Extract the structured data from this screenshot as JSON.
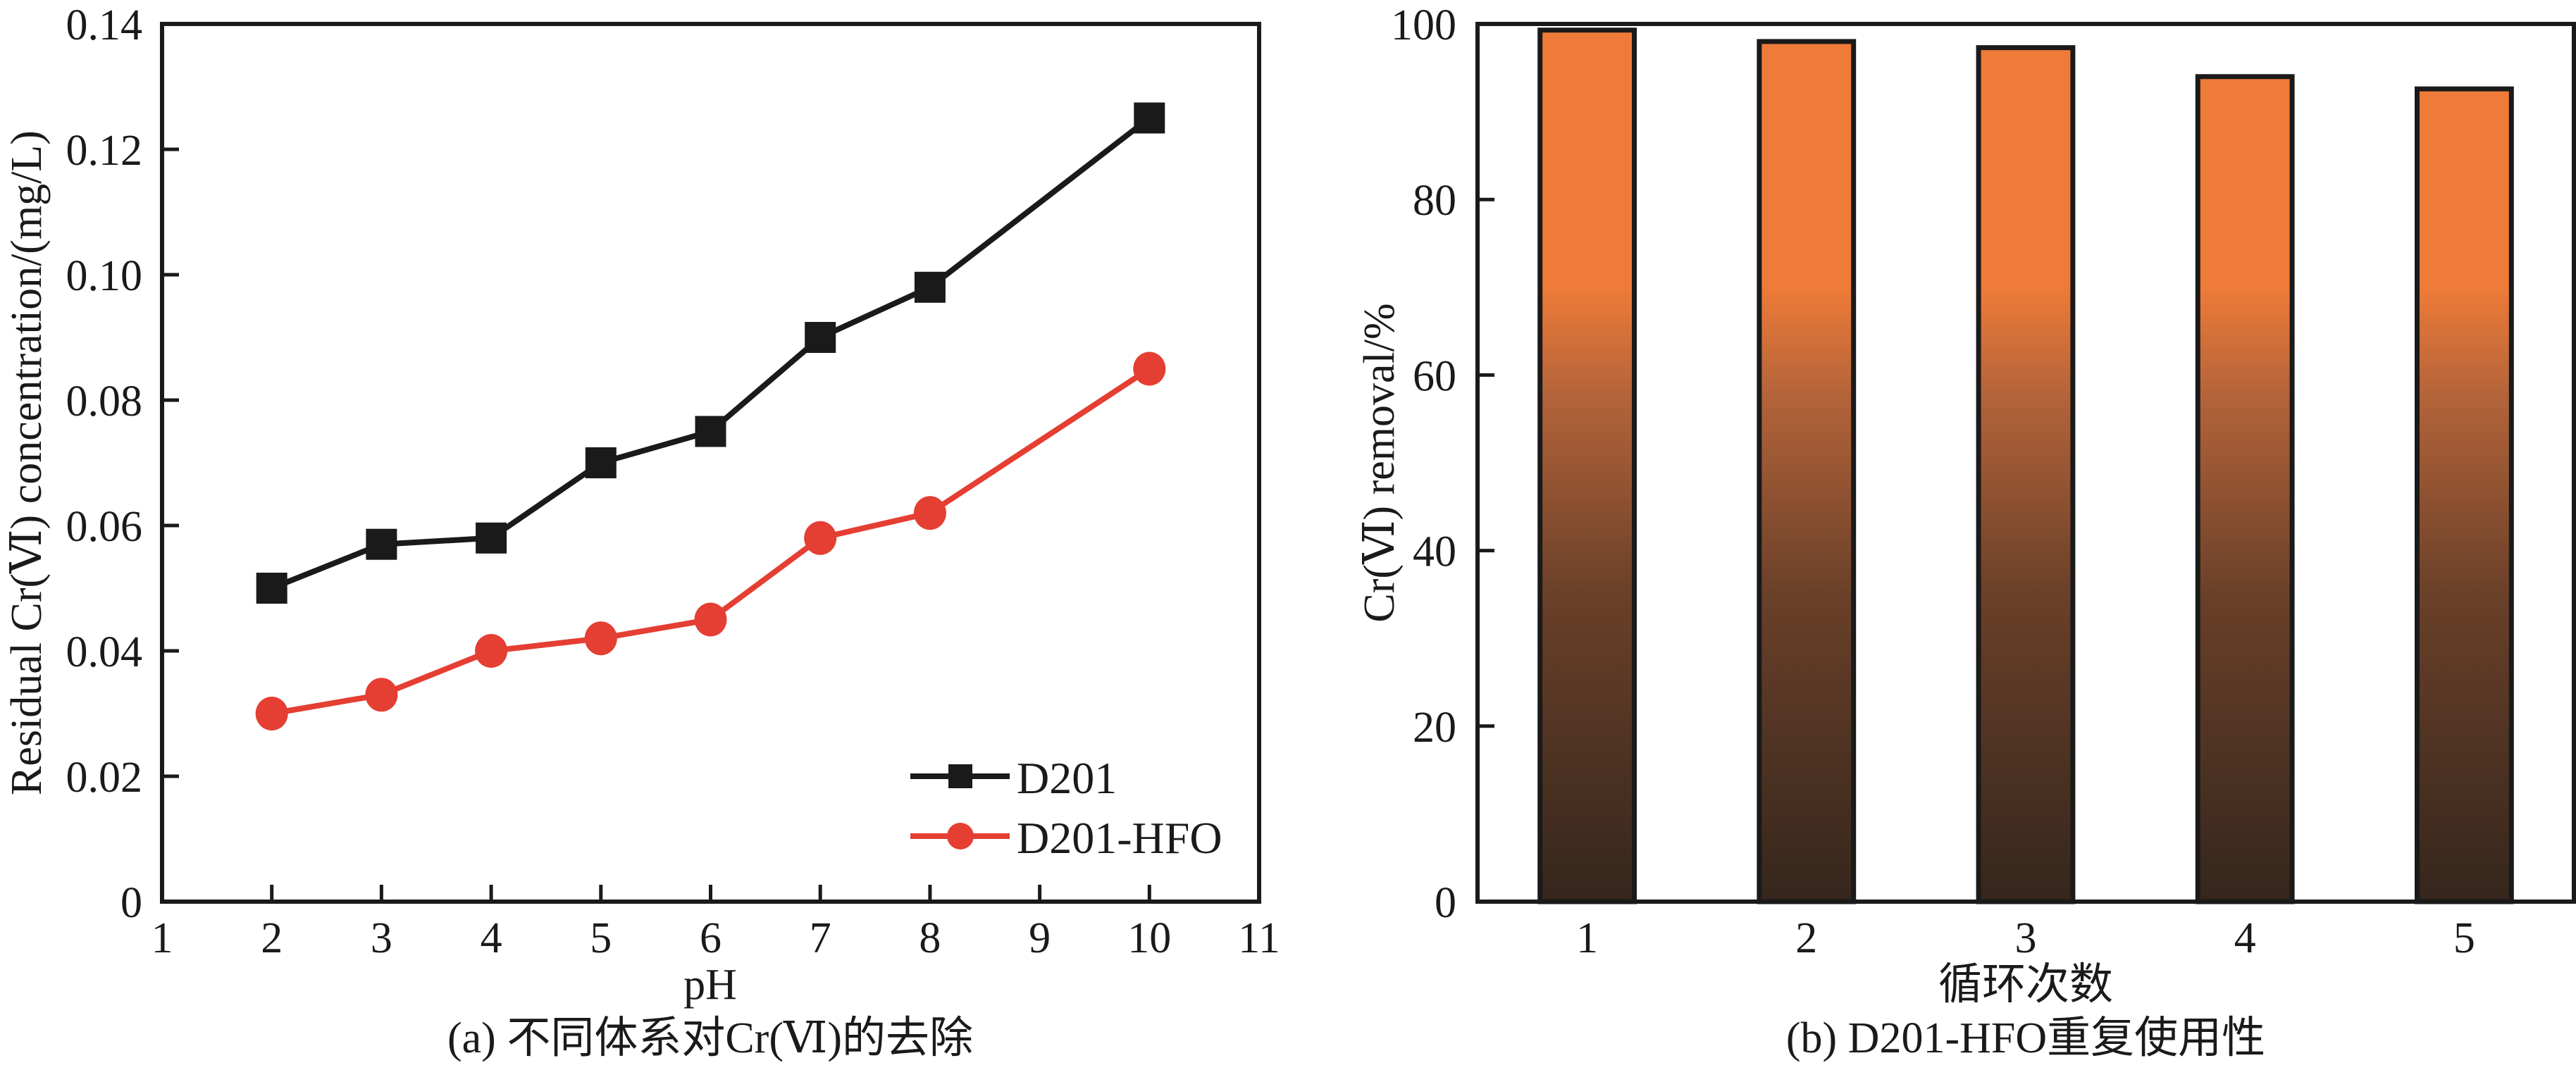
{
  "chart_data": [
    {
      "id": "a",
      "type": "line",
      "caption": "(a) 不同体系对Cr(Ⅵ)的去除",
      "title": "",
      "xlabel": "pH",
      "ylabel": "Residual Cr(Ⅵ) concentration/(mg/L)",
      "xlim": [
        1,
        11
      ],
      "ylim": [
        0,
        0.14
      ],
      "xticks": [
        1,
        2,
        3,
        4,
        5,
        6,
        7,
        8,
        9,
        10,
        11
      ],
      "xtick_labels": [
        "1",
        "2",
        "3",
        "4",
        "5",
        "6",
        "7",
        "8",
        "9",
        "10",
        "11"
      ],
      "yticks": [
        0,
        0.02,
        0.04,
        0.06,
        0.08,
        0.1,
        0.12,
        0.14
      ],
      "ytick_labels": [
        "0",
        "0.02",
        "0.04",
        "0.06",
        "0.08",
        "0.10",
        "0.12",
        "0.14"
      ],
      "grid": false,
      "legend_position": "bottom-right",
      "x": [
        2,
        3,
        4,
        5,
        6,
        7,
        8,
        10
      ],
      "series": [
        {
          "name": "D201",
          "marker": "square",
          "color": "#1a1a1a",
          "values": [
            0.05,
            0.057,
            0.058,
            0.07,
            0.075,
            0.09,
            0.098,
            0.125
          ]
        },
        {
          "name": "D201-HFO",
          "marker": "circle",
          "color": "#e53e32",
          "values": [
            0.03,
            0.033,
            0.04,
            0.042,
            0.045,
            0.058,
            0.062,
            0.085
          ]
        }
      ]
    },
    {
      "id": "b",
      "type": "bar",
      "caption": "(b) D201-HFO重复使用性",
      "title": "",
      "xlabel": "循环次数",
      "ylabel": "Cr(Ⅵ) removal/%",
      "categories": [
        "1",
        "2",
        "3",
        "4",
        "5"
      ],
      "values": [
        99.3,
        98.0,
        97.3,
        94.0,
        92.6
      ],
      "ylim": [
        0,
        100
      ],
      "yticks": [
        0,
        20,
        40,
        60,
        80,
        100
      ],
      "ytick_labels": [
        "0",
        "20",
        "40",
        "60",
        "80",
        "100"
      ],
      "grid": false,
      "colors": {
        "top": "#ee7b38",
        "bottom": "#35261c",
        "edge": "#1a1a1a"
      }
    }
  ]
}
